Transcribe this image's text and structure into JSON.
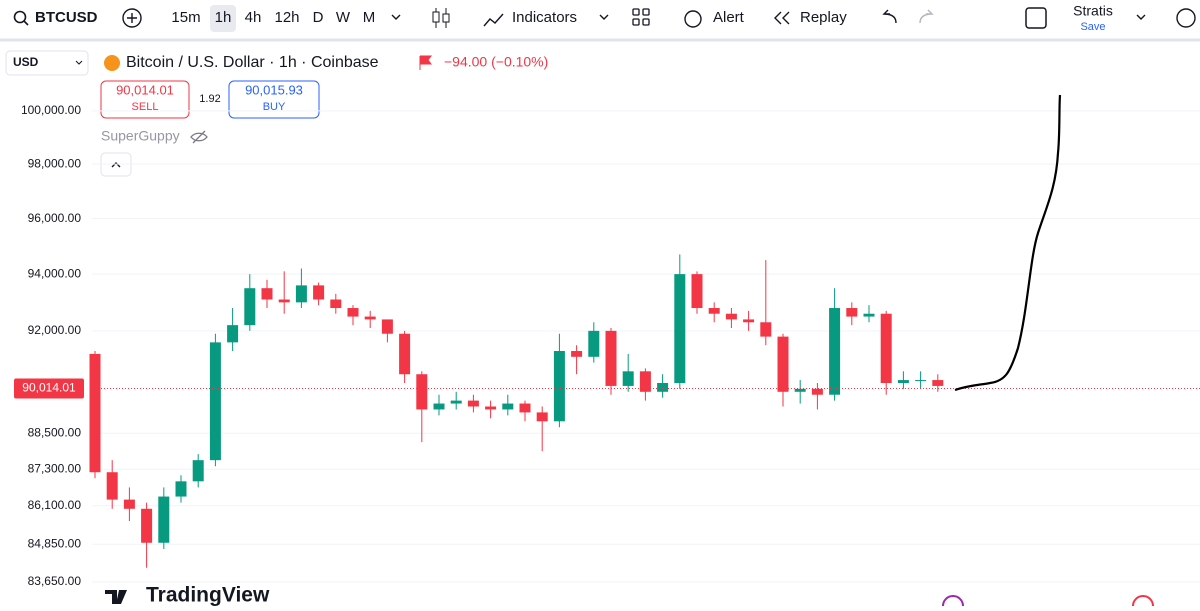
{
  "toolbar": {
    "symbol": "BTCUSD",
    "intervals": [
      "15m",
      "1h",
      "4h",
      "12h",
      "D",
      "W",
      "M"
    ],
    "indicators": "Indicators",
    "alert": "Alert",
    "replay": "Replay",
    "layout_name": "Stratis",
    "save": "Save"
  },
  "legend": {
    "currency": "USD",
    "title": "Bitcoin / U.S. Dollar · 1h · Coinbase",
    "change": "−94.00 (−0.10%)",
    "sell_price": "90,014.01",
    "sell": "SELL",
    "spread": "1.92",
    "buy_price": "90,015.93",
    "buy": "BUY",
    "indicator": "SuperGuppy"
  },
  "footer": {
    "brand": "TradingView"
  },
  "chart_data": {
    "type": "candlestick",
    "log_scale": true,
    "up_color": "#089981",
    "down_color": "#f23645",
    "ylim": [
      83330,
      102490
    ],
    "yticks": [
      {
        "value": 100000,
        "label": "100,000.00"
      },
      {
        "value": 98000,
        "label": "98,000.00"
      },
      {
        "value": 96000,
        "label": "96,000.00"
      },
      {
        "value": 94000,
        "label": "94,000.00"
      },
      {
        "value": 92000,
        "label": "92,000.00"
      },
      {
        "value": 88500,
        "label": "88,500.00"
      },
      {
        "value": 87300,
        "label": "87,300.00"
      },
      {
        "value": 86100,
        "label": "86,100.00"
      },
      {
        "value": 84850,
        "label": "84,850.00"
      },
      {
        "value": 83650,
        "label": "83,650.00"
      }
    ],
    "current_price": {
      "value": 90014.01,
      "label": "90,014.01"
    },
    "open": [
      91200,
      87200,
      86300,
      86000,
      84900,
      86400,
      86900,
      87600,
      91600,
      92200,
      93500,
      93100,
      93000,
      93600,
      93100,
      92800,
      92500,
      92400,
      91900,
      90500,
      89300,
      89500,
      89600,
      89400,
      89300,
      89500,
      89200,
      88900,
      91300,
      91100,
      92000,
      90100,
      90600,
      89900,
      90200,
      94000,
      92800,
      92600,
      92400,
      92300,
      91800,
      89900,
      90000,
      89800,
      92800,
      92500,
      92600,
      90200,
      90300,
      90300
    ],
    "high": [
      91300,
      87600,
      86700,
      86200,
      86700,
      87100,
      87800,
      91900,
      92800,
      94000,
      93800,
      94100,
      94200,
      93700,
      93300,
      92900,
      92700,
      92400,
      92000,
      90600,
      89800,
      89900,
      89800,
      89600,
      89800,
      89600,
      89400,
      91900,
      91500,
      92300,
      92100,
      91200,
      90700,
      90500,
      94700,
      94100,
      93000,
      92800,
      92700,
      94500,
      91900,
      90300,
      90200,
      93500,
      93000,
      92900,
      92700,
      90600,
      90600,
      90500
    ],
    "low": [
      87000,
      86000,
      85600,
      84100,
      84700,
      86200,
      86700,
      87400,
      91300,
      92000,
      92800,
      92600,
      92800,
      92900,
      92600,
      92200,
      92100,
      91600,
      90200,
      88200,
      89100,
      89300,
      89200,
      89000,
      89100,
      88900,
      87900,
      88700,
      90500,
      90900,
      89800,
      89900,
      89600,
      89700,
      90000,
      92600,
      92300,
      92100,
      92000,
      91500,
      89400,
      89500,
      89300,
      89600,
      92200,
      92300,
      89800,
      90000,
      90000,
      89900
    ],
    "close": [
      87200,
      86300,
      86000,
      84900,
      86400,
      86900,
      87600,
      91600,
      92200,
      93500,
      93100,
      93000,
      93600,
      93100,
      92800,
      92500,
      92400,
      91900,
      90500,
      89300,
      89500,
      89600,
      89400,
      89300,
      89500,
      89200,
      88900,
      91300,
      91100,
      92000,
      90100,
      90600,
      89900,
      90200,
      94000,
      92800,
      92600,
      92400,
      92300,
      91800,
      89900,
      90000,
      89800,
      92800,
      92500,
      92600,
      90200,
      90300,
      90300,
      90100
    ]
  }
}
